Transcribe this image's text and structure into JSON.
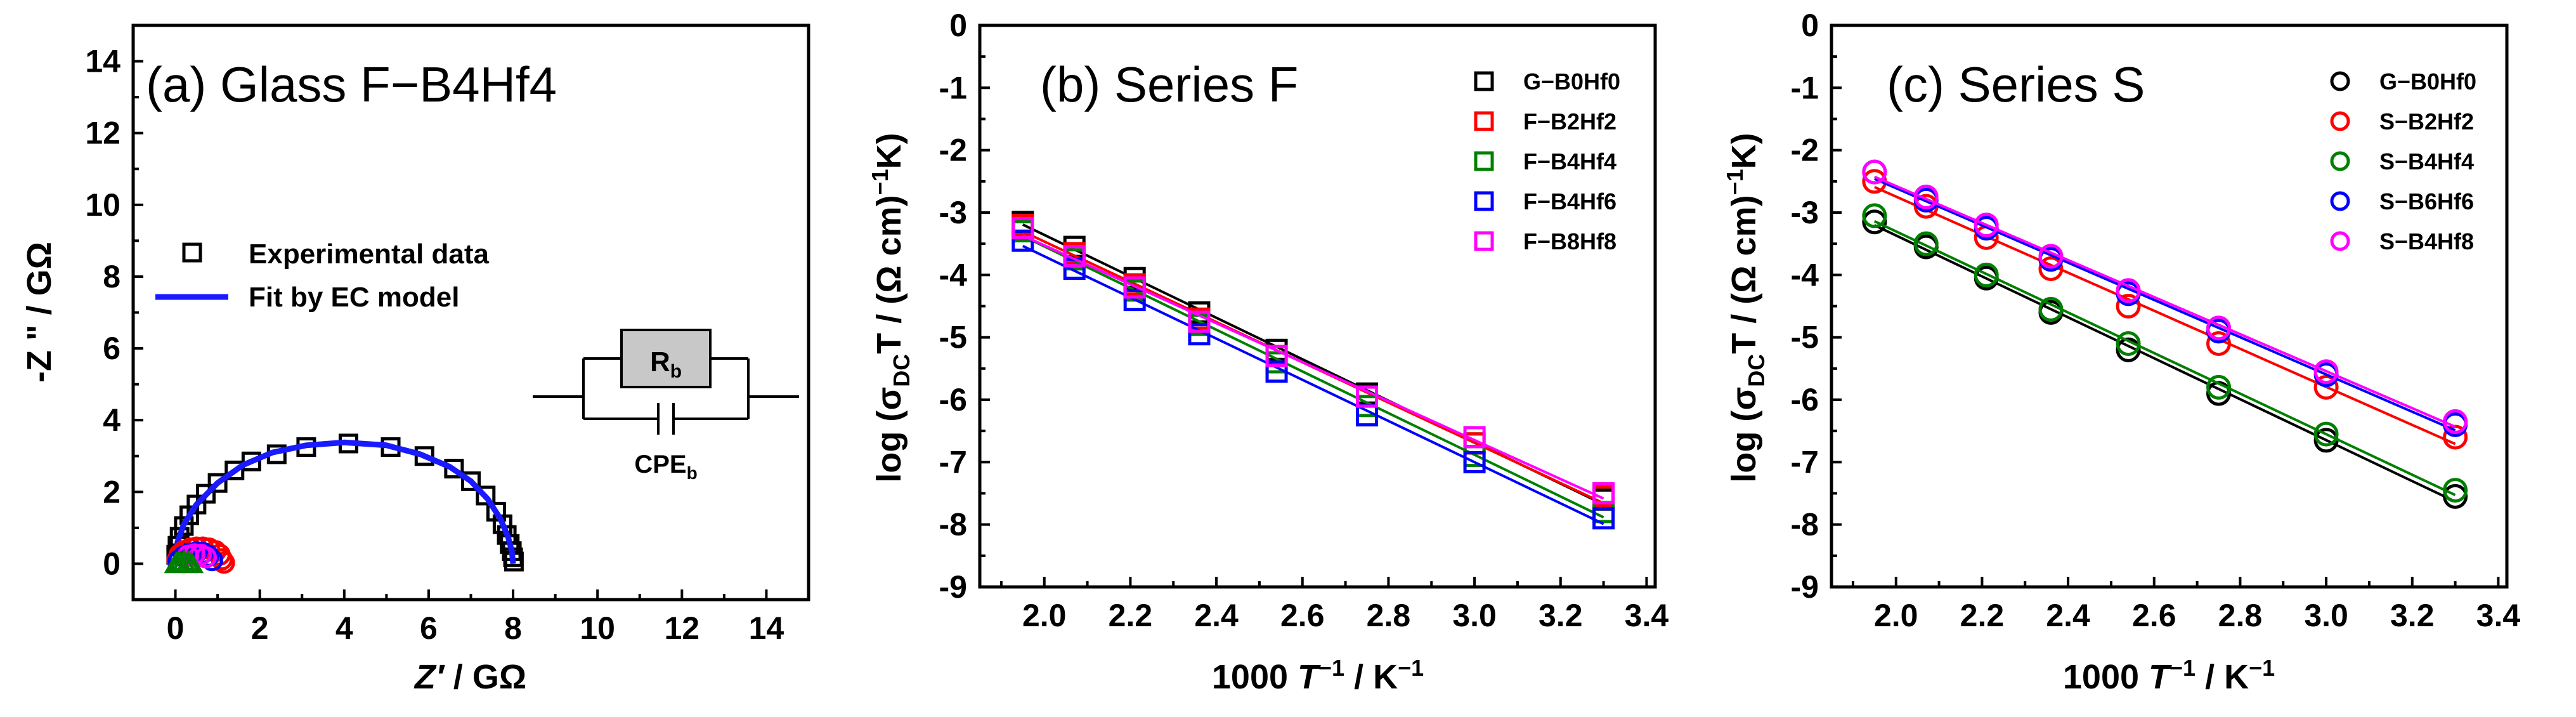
{
  "colors": {
    "black": "#000000",
    "red": "#ff0000",
    "green": "#008000",
    "blue": "#0000ff",
    "magenta": "#ff00ff",
    "fit_blue": "#1a1aff",
    "component_fill": "#c8c8c8"
  },
  "chart_data": [
    {
      "type": "scatter",
      "title": "(a) Glass F−B4Hf4",
      "xlabel_italic": "Z′",
      "xlabel_rest": " / GΩ",
      "ylabel": "-Z \" / GΩ",
      "xlim": [
        -1,
        15
      ],
      "ylim": [
        -1,
        15
      ],
      "xticks": [
        "0",
        "2",
        "4",
        "6",
        "8",
        "10",
        "12",
        "14"
      ],
      "yticks": [
        "0",
        "2",
        "4",
        "6",
        "8",
        "10",
        "12",
        "14"
      ],
      "legend": [
        {
          "label": "Experimental data",
          "marker": "square",
          "color": "#000000"
        },
        {
          "label": "Fit by EC model",
          "marker": "line",
          "color": "#1a1aff"
        }
      ],
      "circuit": {
        "resistor_label": "R",
        "resistor_sub": "b",
        "cpe_label": "CPE",
        "cpe_sub": "b"
      },
      "series": [
        {
          "name": "Experimental data",
          "color": "#000000",
          "marker": "square",
          "points": [
            [
              0.02,
              0.25
            ],
            [
              0.05,
              0.5
            ],
            [
              0.1,
              0.75
            ],
            [
              0.2,
              1.05
            ],
            [
              0.33,
              1.35
            ],
            [
              0.5,
              1.65
            ],
            [
              0.72,
              1.95
            ],
            [
              1.0,
              2.25
            ],
            [
              1.4,
              2.6
            ],
            [
              1.8,
              2.85
            ],
            [
              2.4,
              3.05
            ],
            [
              3.1,
              3.25
            ],
            [
              4.1,
              3.35
            ],
            [
              5.1,
              3.25
            ],
            [
              5.9,
              3.0
            ],
            [
              6.6,
              2.65
            ],
            [
              7.0,
              2.3
            ],
            [
              7.35,
              1.9
            ],
            [
              7.6,
              1.45
            ],
            [
              7.75,
              1.1
            ],
            [
              7.85,
              0.8
            ],
            [
              7.92,
              0.55
            ],
            [
              7.97,
              0.35
            ],
            [
              8.0,
              0.18
            ],
            [
              8.02,
              0.06
            ]
          ]
        },
        {
          "name": "Fit by EC model",
          "color": "#1a1aff",
          "marker": "line",
          "points": [
            [
              0.0,
              0.0
            ],
            [
              0.05,
              0.6
            ],
            [
              0.2,
              1.1
            ],
            [
              0.5,
              1.65
            ],
            [
              1.0,
              2.25
            ],
            [
              1.6,
              2.75
            ],
            [
              2.3,
              3.1
            ],
            [
              3.1,
              3.3
            ],
            [
              4.0,
              3.38
            ],
            [
              5.0,
              3.3
            ],
            [
              5.8,
              3.05
            ],
            [
              6.5,
              2.7
            ],
            [
              7.0,
              2.3
            ],
            [
              7.4,
              1.8
            ],
            [
              7.7,
              1.25
            ],
            [
              7.88,
              0.75
            ],
            [
              7.97,
              0.35
            ],
            [
              8.0,
              0.0
            ]
          ]
        },
        {
          "name": "red arc",
          "color": "#ff0000",
          "marker": "circle",
          "points": [
            [
              0.05,
              0.1
            ],
            [
              0.1,
              0.25
            ],
            [
              0.2,
              0.35
            ],
            [
              0.35,
              0.42
            ],
            [
              0.5,
              0.45
            ],
            [
              0.65,
              0.45
            ],
            [
              0.8,
              0.42
            ],
            [
              0.95,
              0.35
            ],
            [
              1.05,
              0.25
            ],
            [
              1.1,
              0.12
            ],
            [
              1.15,
              0.03
            ]
          ]
        },
        {
          "name": "blue arc",
          "color": "#0000ff",
          "marker": "circle",
          "points": [
            [
              0.08,
              0.08
            ],
            [
              0.2,
              0.2
            ],
            [
              0.35,
              0.28
            ],
            [
              0.5,
              0.32
            ],
            [
              0.65,
              0.3
            ],
            [
              0.78,
              0.22
            ],
            [
              0.87,
              0.1
            ]
          ]
        },
        {
          "name": "magenta arc",
          "color": "#ff00ff",
          "marker": "circle",
          "points": [
            [
              0.3,
              0.22
            ],
            [
              0.45,
              0.26
            ],
            [
              0.6,
              0.25
            ],
            [
              0.72,
              0.18
            ]
          ]
        },
        {
          "name": "green arc",
          "color": "#008000",
          "marker": "triangle",
          "points": [
            [
              0.02,
              0.02
            ],
            [
              0.1,
              0.06
            ],
            [
              0.2,
              0.08
            ],
            [
              0.3,
              0.06
            ],
            [
              0.38,
              0.02
            ]
          ]
        }
      ]
    },
    {
      "type": "scatter",
      "title": "(b) Series F",
      "xlabel_pre": "1000 ",
      "xlabel_italic": "T",
      "xlabel_sup": "−1",
      "xlabel_mid": " / K",
      "xlabel_sup2": "−1",
      "ylabel_pre": "log (σ",
      "ylabel_sub": "DC",
      "ylabel_mid": "T / (Ω cm)",
      "ylabel_sup": "−1",
      "ylabel_post": "K)",
      "xlim": [
        1.85,
        3.42
      ],
      "ylim": [
        -9,
        0
      ],
      "xticks": [
        "2.0",
        "2.2",
        "2.4",
        "2.6",
        "2.8",
        "3.0",
        "3.2",
        "3.4"
      ],
      "yticks": [
        "0",
        "-1",
        "-2",
        "-3",
        "-4",
        "-5",
        "-6",
        "-7",
        "-8",
        "-9"
      ],
      "x": [
        1.95,
        2.07,
        2.21,
        2.36,
        2.54,
        2.75,
        3.0,
        3.3
      ],
      "series": [
        {
          "name": "G−B0Hf0",
          "color": "#000000",
          "marker": "square",
          "values": [
            -3.15,
            -3.55,
            -4.05,
            -4.6,
            -5.2,
            -5.9,
            -6.7,
            -7.6
          ]
        },
        {
          "name": "F−B2Hf2",
          "color": "#ff0000",
          "marker": "square",
          "values": [
            -3.2,
            -3.65,
            -4.15,
            -4.7,
            -5.3,
            -5.95,
            -6.7,
            -7.55
          ]
        },
        {
          "name": "F−B4Hf4",
          "color": "#008000",
          "marker": "square",
          "values": [
            -3.3,
            -3.75,
            -4.25,
            -4.8,
            -5.4,
            -6.1,
            -6.9,
            -7.8
          ]
        },
        {
          "name": "F−B4Hf6",
          "color": "#0000ff",
          "marker": "square",
          "values": [
            -3.45,
            -3.9,
            -4.4,
            -4.95,
            -5.55,
            -6.25,
            -7.0,
            -7.9
          ]
        },
        {
          "name": "F−B8Hf8",
          "color": "#ff00ff",
          "marker": "square",
          "values": [
            -3.25,
            -3.7,
            -4.2,
            -4.75,
            -5.3,
            -5.95,
            -6.6,
            -7.5
          ]
        }
      ]
    },
    {
      "type": "scatter",
      "title": "(c) Series S",
      "xlabel_pre": "1000 ",
      "xlabel_italic": "T",
      "xlabel_sup": "−1",
      "xlabel_mid": " / K",
      "xlabel_sup2": "−1",
      "ylabel_pre": "log (σ",
      "ylabel_sub": "DC",
      "ylabel_mid": "T / (Ω cm)",
      "ylabel_sup": "−1",
      "ylabel_post": "K)",
      "xlim": [
        1.85,
        3.42
      ],
      "ylim": [
        -9,
        0
      ],
      "xticks": [
        "2.0",
        "2.2",
        "2.4",
        "2.6",
        "2.8",
        "3.0",
        "3.2",
        "3.4"
      ],
      "yticks": [
        "0",
        "-1",
        "-2",
        "-3",
        "-4",
        "-5",
        "-6",
        "-7",
        "-8",
        "-9"
      ],
      "x": [
        1.95,
        2.07,
        2.21,
        2.36,
        2.54,
        2.75,
        3.0,
        3.3
      ],
      "series": [
        {
          "name": "G−B0Hf0",
          "color": "#000000",
          "marker": "circle",
          "values": [
            -3.15,
            -3.55,
            -4.05,
            -4.6,
            -5.2,
            -5.9,
            -6.65,
            -7.55
          ]
        },
        {
          "name": "S−B2Hf2",
          "color": "#ff0000",
          "marker": "circle",
          "values": [
            -2.5,
            -2.9,
            -3.4,
            -3.9,
            -4.5,
            -5.1,
            -5.8,
            -6.6
          ]
        },
        {
          "name": "S−B4Hf4",
          "color": "#008000",
          "marker": "circle",
          "values": [
            -3.05,
            -3.5,
            -4.0,
            -4.55,
            -5.1,
            -5.8,
            -6.55,
            -7.45
          ]
        },
        {
          "name": "S−B6Hf6",
          "color": "#0000ff",
          "marker": "circle",
          "values": [
            -2.35,
            -2.8,
            -3.25,
            -3.75,
            -4.3,
            -4.9,
            -5.6,
            -6.4
          ]
        },
        {
          "name": "S−B4Hf8",
          "color": "#ff00ff",
          "marker": "circle",
          "values": [
            -2.35,
            -2.75,
            -3.2,
            -3.7,
            -4.25,
            -4.85,
            -5.55,
            -6.35
          ]
        }
      ]
    }
  ]
}
